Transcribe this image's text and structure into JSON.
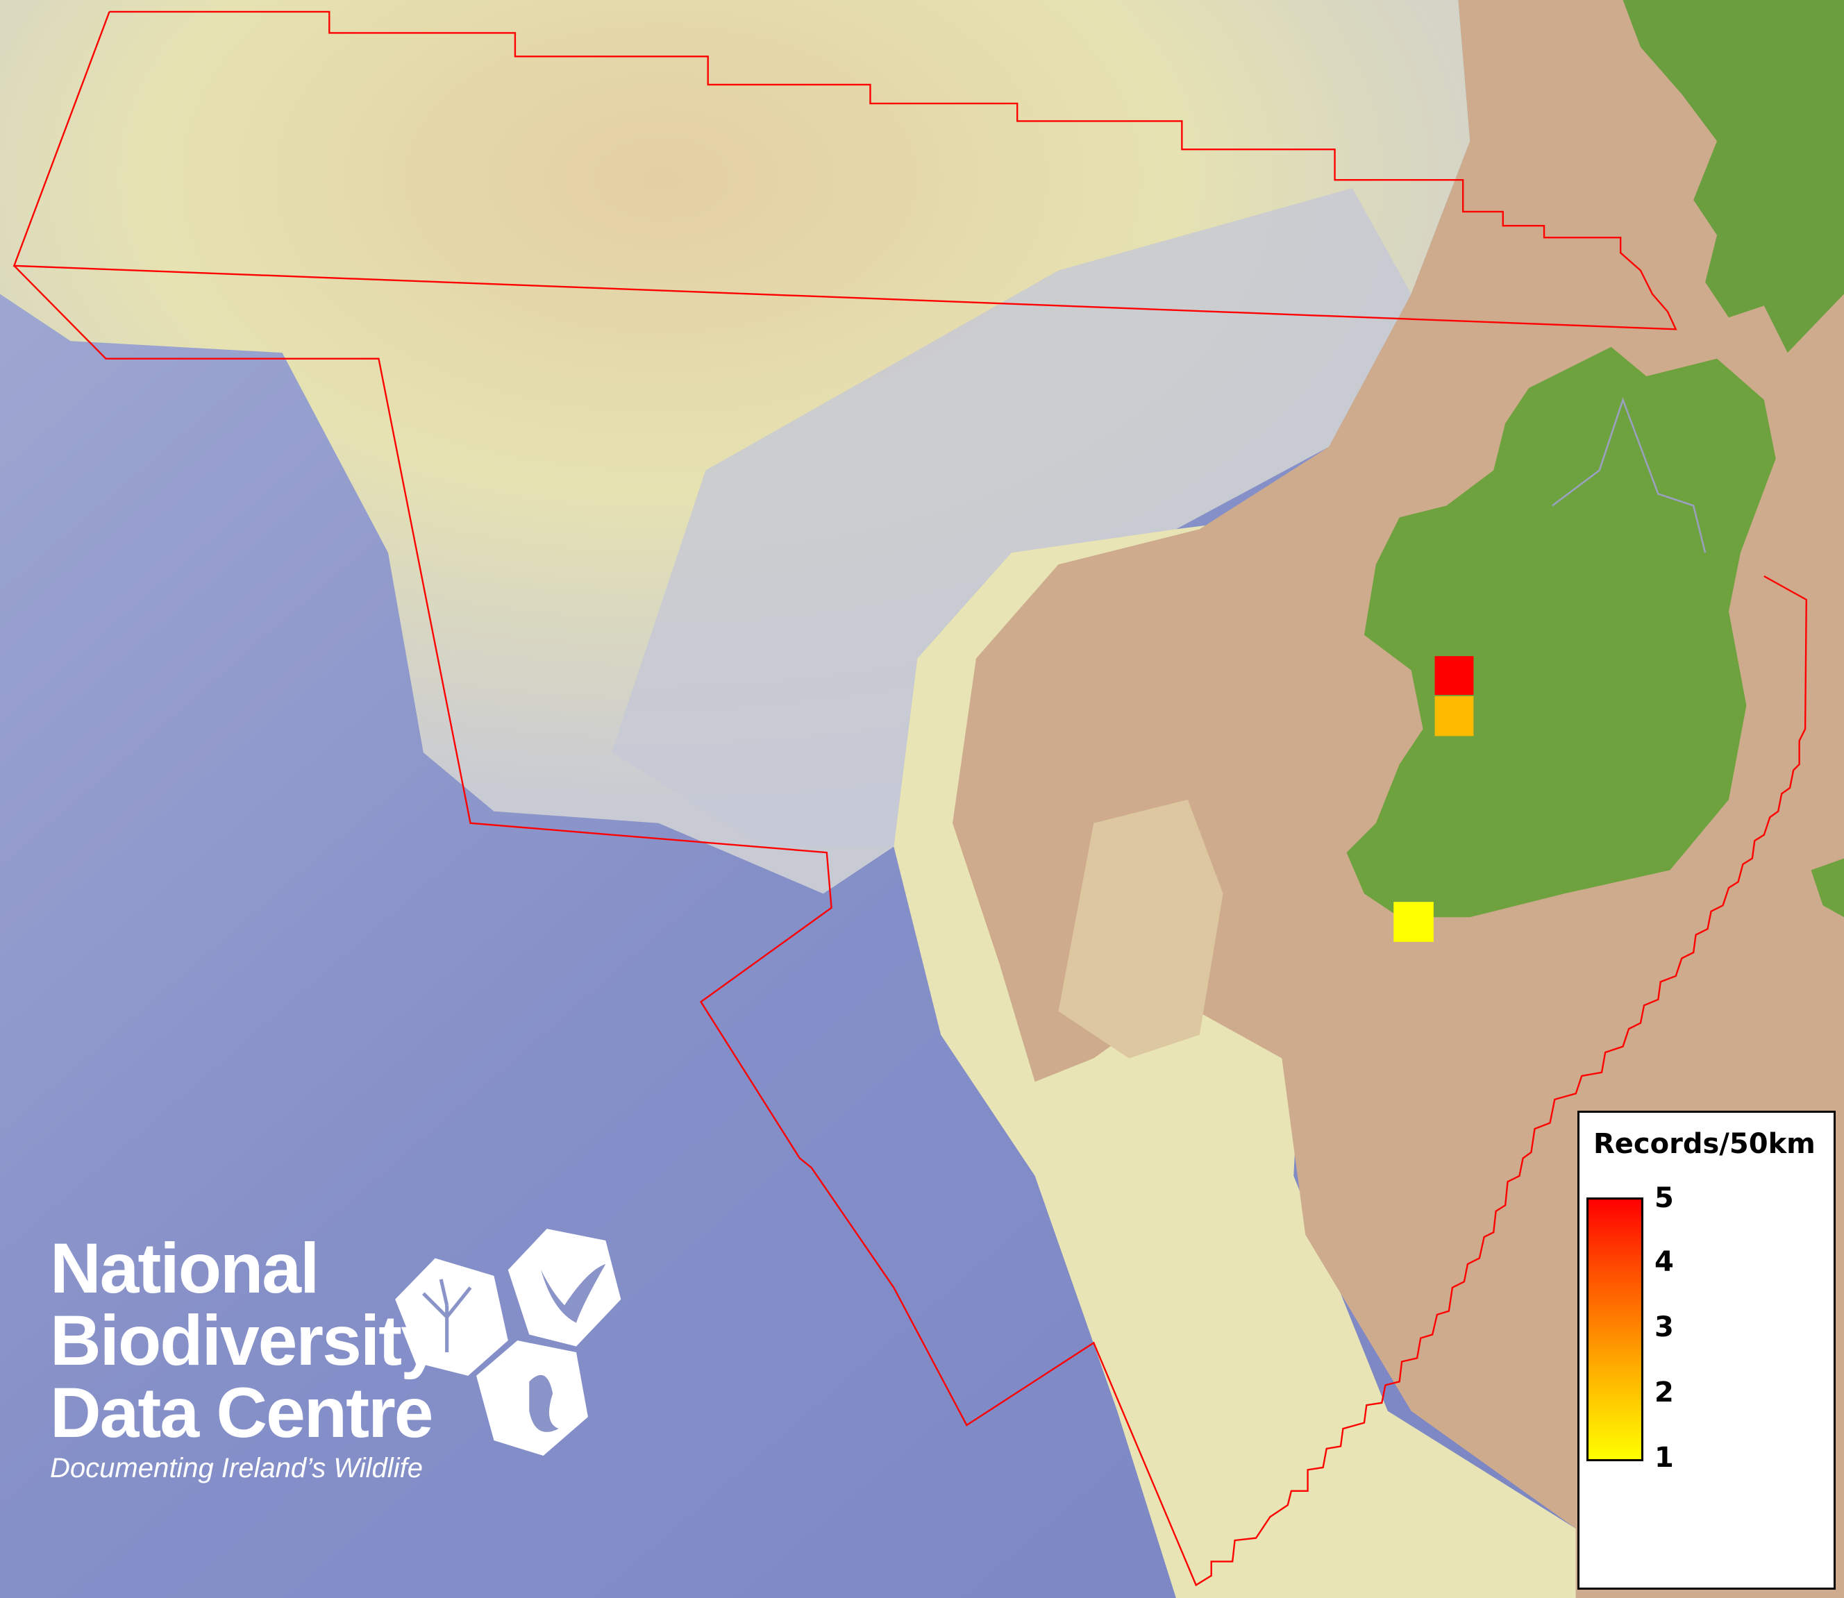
{
  "map": {
    "colors": {
      "ocean": "#7f8ac4",
      "shelf": "#e6e2b0",
      "slope": "#c8c8d0",
      "land_shelf": "#cfac8c",
      "land": "#6ea23f",
      "boundary": "#ff0000"
    },
    "records": [
      {
        "value": 5,
        "color": "#ff0000"
      },
      {
        "value": 2,
        "color": "#ffbb00"
      },
      {
        "value": 1,
        "color": "#ffff00"
      }
    ]
  },
  "legend": {
    "title": "Records/50km",
    "min": 1,
    "max": 5,
    "ticks": [
      "5",
      "4",
      "3",
      "2",
      "1"
    ],
    "colors": {
      "low": "#ffff00",
      "high": "#ff0000"
    }
  },
  "logo": {
    "line1": "National",
    "line2": "Biodiversity",
    "line3": "Data Centre",
    "tagline": "Documenting Ireland’s Wildlife",
    "icons": [
      "plant-icon",
      "butterfly-icon",
      "seahorse-icon"
    ]
  }
}
